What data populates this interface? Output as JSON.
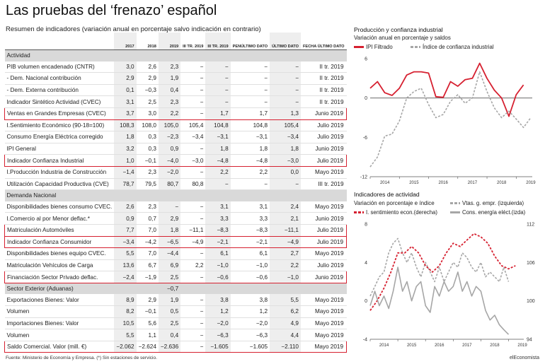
{
  "title": "Las pruebas del ‘frenazo’ español",
  "subtitle": "Resumen de indicadores (variación anual en porcentaje salvo indicación en contrario)",
  "table": {
    "headers": [
      "2017",
      "2018",
      "2019",
      "III TR. 2019",
      "III TR. 2019",
      "PENÚLTIMO DATO",
      "ÚLTIMO DATO",
      "FECHA ÚLTIMO DATO"
    ],
    "rows": [
      {
        "type": "section",
        "label": "Actividad",
        "vals": [
          "",
          "",
          "",
          "",
          "",
          "",
          "",
          ""
        ]
      },
      {
        "type": "row",
        "label": "PIB volumen encadenado (CNTR)",
        "vals": [
          "3,0",
          "2,6",
          "2,3",
          "−",
          "−",
          "−",
          "−",
          "II tr. 2019"
        ]
      },
      {
        "type": "row",
        "label": "- Dem. Nacional contribución",
        "vals": [
          "2,9",
          "2,9",
          "1,9",
          "−",
          "−",
          "−",
          "−",
          "II tr. 2019"
        ]
      },
      {
        "type": "row",
        "label": "- Dem. Externa contribución",
        "vals": [
          "0,1",
          "−0,3",
          "0,4",
          "−",
          "−",
          "−",
          "−",
          "II tr. 2019"
        ]
      },
      {
        "type": "row",
        "label": "Indicador Sintético Actividad (CVEC)",
        "vals": [
          "3,1",
          "2,5",
          "2,3",
          "−",
          "−",
          "−",
          "−",
          "II tr. 2019"
        ]
      },
      {
        "type": "row",
        "hl": true,
        "label": "Ventas en Grandes Empresas (CVEC)",
        "vals": [
          "3,7",
          "3,0",
          "2,2",
          "−",
          "1,7",
          "1,7",
          "1,3",
          "Junio 2019"
        ]
      },
      {
        "type": "row",
        "label": "I.Sentimiento Económico (90-18=100)",
        "vals": [
          "108,3",
          "108,0",
          "105,0",
          "105,4",
          "104,8",
          "104,8",
          "105,4",
          "Julio 2019"
        ]
      },
      {
        "type": "row",
        "label": "Consumo Energía Eléctrica corregido",
        "vals": [
          "1,8",
          "0,3",
          "−2,3",
          "−3,4",
          "−3,1",
          "−3,1",
          "−3,4",
          "Julio 2019"
        ]
      },
      {
        "type": "row",
        "label": "IPI General",
        "vals": [
          "3,2",
          "0,3",
          "0,9",
          "−",
          "1,8",
          "1,8",
          "1,8",
          "Junio 2019"
        ]
      },
      {
        "type": "row",
        "hl": true,
        "label": "Indicador Confianza Industrial",
        "vals": [
          "1,0",
          "−0,1",
          "−4,0",
          "−3,0",
          "−4,8",
          "−4,8",
          "−3,0",
          "Julio 2019"
        ]
      },
      {
        "type": "row",
        "label": "I.Producción Industria de Construcción",
        "vals": [
          "−1,4",
          "2,3",
          "−2,0",
          "−",
          "2,2",
          "2,2",
          "0,0",
          "Mayo 2019"
        ]
      },
      {
        "type": "row",
        "label": "Utilización Capacidad Productiva (CVE)",
        "vals": [
          "78,7",
          "79,5",
          "80,7",
          "80,8",
          "−",
          "−",
          "−",
          "III tr. 2019"
        ]
      },
      {
        "type": "section",
        "label": "Demanda Nacional",
        "vals": [
          "",
          "",
          "",
          "",
          "",
          "",
          "",
          ""
        ]
      },
      {
        "type": "row",
        "label": "Disponibilidades bienes consumo CVEC.",
        "vals": [
          "2,6",
          "2,3",
          "−",
          "−",
          "3,1",
          "3,1",
          "2,4",
          "Mayo 2019"
        ]
      },
      {
        "type": "row",
        "label": "I.Comercio al por Menor deflac.*",
        "vals": [
          "0,9",
          "0,7",
          "2,9",
          "−",
          "3,3",
          "3,3",
          "2,1",
          "Junio 2019"
        ]
      },
      {
        "type": "row",
        "hl": true,
        "label": "Matriculación Automóviles",
        "vals": [
          "7,7",
          "7,0",
          "1,8",
          "−11,1",
          "−8,3",
          "−8,3",
          "−11,1",
          "Julio 2019"
        ]
      },
      {
        "type": "row",
        "hl": true,
        "label": "Indicador Confianza Consumidor",
        "vals": [
          "−3,4",
          "−4,2",
          "−6,5",
          "−4,9",
          "−2,1",
          "−2,1",
          "−4,9",
          "Julio 2019"
        ]
      },
      {
        "type": "row",
        "label": "Disponibilidades bienes equipo CVEC.",
        "vals": [
          "5,5",
          "7,0",
          "−4,4",
          "−",
          "6,1",
          "6,1",
          "2,7",
          "Mayo 2019"
        ]
      },
      {
        "type": "row",
        "label": "Matriculación Vehículos de Carga",
        "vals": [
          "13,6",
          "6,7",
          "6,9",
          "2,2",
          "−1,0",
          "−1,0",
          "2,2",
          "Julio 2019"
        ]
      },
      {
        "type": "row",
        "hl": true,
        "label": "Financiación Sector Privado deflac.",
        "vals": [
          "−2,4",
          "−1,9",
          "2,5",
          "−",
          "−0,6",
          "−0,6",
          "−1,0",
          "Junio 2019"
        ]
      },
      {
        "type": "section",
        "label": "Sector Exterior (Aduanas)",
        "vals": [
          "",
          "",
          "−0,7",
          "",
          "",
          "",
          "",
          ""
        ]
      },
      {
        "type": "row",
        "label": "Exportaciones Bienes: Valor",
        "vals": [
          "8,9",
          "2,9",
          "1,9",
          "−",
          "3,8",
          "3,8",
          "5,5",
          "Mayo 2019"
        ]
      },
      {
        "type": "row",
        "label": "Volumen",
        "vals": [
          "8,2",
          "−0,1",
          "0,5",
          "−",
          "1,2",
          "1,2",
          "6,2",
          "Mayo 2019"
        ]
      },
      {
        "type": "row",
        "label": "Importaciones Bienes: Valor",
        "vals": [
          "10,5",
          "5,6",
          "2,5",
          "−",
          "−2,0",
          "−2,0",
          "4,9",
          "Mayo 2019"
        ]
      },
      {
        "type": "row",
        "label": "Volumen",
        "vals": [
          "5,5",
          "1,1",
          "0,4",
          "−",
          "−6,3",
          "−6,3",
          "4,4",
          "Mayo 2019"
        ]
      },
      {
        "type": "row",
        "hl": true,
        "label": "Saldo Comercial. Valor (mill. €)",
        "vals": [
          "−2.062",
          "−2.624",
          "−2.636",
          "−",
          "−1.605",
          "−1.605",
          "−2.110",
          "Mayo 2019"
        ]
      }
    ]
  },
  "footer": "Fuente: Ministerio de Economía y Empresa. (*) Sin estaciones de servicio.",
  "brand": "elEconomista",
  "colors": {
    "red": "#d62030",
    "gray": "#a6a6a6",
    "shade": "#eeeeee",
    "section": "#d9d9d9"
  },
  "chart_data": [
    {
      "type": "line",
      "title": "Producción y confianza industrial",
      "subtitle": "Variación anual en porcentaje y saldos",
      "x_ticks": [
        "2014",
        "2015",
        "2016",
        "2017",
        "2018",
        "2019"
      ],
      "ylim": [
        -12,
        6
      ],
      "yticks": [
        -12,
        -6,
        0,
        6
      ],
      "series": [
        {
          "name": "IPI Filtrado",
          "color": "#d62030",
          "style": "solid",
          "x": [
            2014.0,
            2014.25,
            2014.5,
            2014.75,
            2015.0,
            2015.25,
            2015.5,
            2015.75,
            2016.0,
            2016.25,
            2016.5,
            2016.75,
            2017.0,
            2017.25,
            2017.5,
            2017.75,
            2018.0,
            2018.25,
            2018.5,
            2018.75,
            2019.0,
            2019.25
          ],
          "y": [
            1.5,
            2.5,
            0.8,
            0.4,
            1.5,
            3.5,
            4.0,
            4.0,
            3.8,
            0.2,
            0.1,
            2.5,
            1.8,
            2.8,
            3.0,
            5.3,
            3.0,
            1.2,
            0.0,
            -2.8,
            0.5,
            2.0
          ]
        },
        {
          "name": "Índice de confianza industrial",
          "color": "#a6a6a6",
          "style": "dashed",
          "x": [
            2014.0,
            2014.25,
            2014.5,
            2014.75,
            2015.0,
            2015.25,
            2015.5,
            2015.75,
            2016.0,
            2016.25,
            2016.5,
            2016.75,
            2017.0,
            2017.25,
            2017.5,
            2017.75,
            2018.0,
            2018.25,
            2018.5,
            2018.75,
            2019.0,
            2019.25,
            2019.5
          ],
          "y": [
            -10.5,
            -9.0,
            -5.8,
            -5.5,
            -3.5,
            0.0,
            1.0,
            1.5,
            -1.0,
            -3.0,
            -2.5,
            -0.5,
            0.5,
            -0.8,
            0.0,
            4.0,
            1.0,
            -1.5,
            -3.0,
            -2.0,
            -3.2,
            -4.5,
            -3.0
          ]
        }
      ]
    },
    {
      "type": "line",
      "title": "Indicadores de actividad",
      "subtitle": "Variación en porcentaje e índice",
      "x_ticks": [
        "2014",
        "2015",
        "2016",
        "2017",
        "2018",
        "2019"
      ],
      "ylim_left": [
        -4,
        8
      ],
      "yticks_left": [
        -4,
        0,
        4,
        8
      ],
      "ylim_right": [
        94,
        112
      ],
      "yticks_right": [
        94,
        100,
        106,
        112
      ],
      "series": [
        {
          "name": "Vtas. g. empr. (izquierda)",
          "color": "#a6a6a6",
          "style": "dashed",
          "axis": "left",
          "x": [
            2014.0,
            2014.17,
            2014.33,
            2014.5,
            2014.67,
            2014.83,
            2015.0,
            2015.17,
            2015.33,
            2015.5,
            2015.67,
            2015.83,
            2016.0,
            2016.17,
            2016.33,
            2016.5,
            2016.67,
            2016.83,
            2017.0,
            2017.17,
            2017.33,
            2017.5,
            2017.67,
            2017.83,
            2018.0,
            2018.17,
            2018.33,
            2018.5,
            2018.67,
            2018.83,
            2019.0
          ],
          "y": [
            0.5,
            1.5,
            2.5,
            3.0,
            5.0,
            6.0,
            6.5,
            5.0,
            4.0,
            5.0,
            3.5,
            2.5,
            4.0,
            3.0,
            2.0,
            3.5,
            2.0,
            3.0,
            4.0,
            3.5,
            5.0,
            4.5,
            3.5,
            3.0,
            4.0,
            2.5,
            3.0,
            2.5,
            2.0,
            3.5,
            2.0
          ]
        },
        {
          "name": "I. sentimiento econ.(derecha)",
          "color": "#d62030",
          "style": "dashed",
          "axis": "right",
          "x": [
            2014.0,
            2014.25,
            2014.5,
            2014.75,
            2015.0,
            2015.25,
            2015.5,
            2015.75,
            2016.0,
            2016.25,
            2016.5,
            2016.75,
            2017.0,
            2017.25,
            2017.5,
            2017.75,
            2018.0,
            2018.25,
            2018.5,
            2018.75,
            2019.0,
            2019.25
          ],
          "y": [
            98.5,
            100.0,
            102.0,
            104.5,
            107.5,
            107.5,
            108.5,
            107.5,
            105.5,
            104.5,
            105.5,
            107.5,
            109.0,
            108.5,
            109.5,
            110.5,
            110.0,
            109.0,
            107.0,
            105.5,
            105.0,
            105.5
          ]
        },
        {
          "name": "Cons. energía eléct.(izda)",
          "color": "#a6a6a6",
          "style": "solid",
          "axis": "left",
          "x": [
            2014.0,
            2014.17,
            2014.33,
            2014.5,
            2014.67,
            2014.83,
            2015.0,
            2015.17,
            2015.33,
            2015.5,
            2015.67,
            2015.83,
            2016.0,
            2016.17,
            2016.33,
            2016.5,
            2016.67,
            2016.83,
            2017.0,
            2017.17,
            2017.33,
            2017.5,
            2017.67,
            2017.83,
            2018.0,
            2018.17,
            2018.33,
            2018.5,
            2018.67,
            2018.83,
            2019.0
          ],
          "y": [
            -0.5,
            1.0,
            -0.5,
            0.5,
            -0.8,
            1.0,
            3.5,
            1.0,
            2.0,
            0.0,
            1.5,
            2.0,
            -0.5,
            -1.2,
            1.5,
            0.5,
            2.0,
            1.0,
            1.5,
            3.0,
            1.0,
            2.0,
            0.5,
            1.5,
            1.0,
            -1.0,
            -2.0,
            -1.5,
            -2.5,
            -3.0,
            -3.5
          ]
        }
      ]
    }
  ]
}
